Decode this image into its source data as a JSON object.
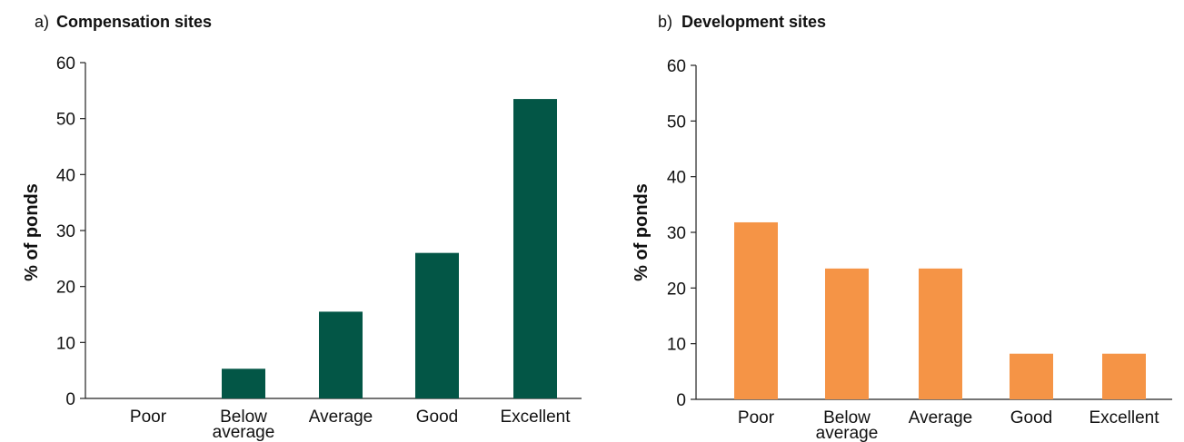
{
  "chart_data": [
    {
      "type": "bar",
      "title_prefix": "a)",
      "title": "Compensation sites",
      "xlabel": "",
      "ylabel": "% of ponds",
      "ylim": [
        0,
        60
      ],
      "yticks": [
        0,
        10,
        20,
        30,
        40,
        50,
        60
      ],
      "categories": [
        "Poor",
        "Below average",
        "Average",
        "Good",
        "Excellent"
      ],
      "category_lines": [
        [
          "Poor"
        ],
        [
          "Below",
          "average"
        ],
        [
          "Average"
        ],
        [
          "Good"
        ],
        [
          "Excellent"
        ]
      ],
      "values": [
        0,
        5.3,
        15.5,
        26,
        53.5
      ],
      "color": "#035646",
      "grid": false
    },
    {
      "type": "bar",
      "title_prefix": "b)",
      "title": "Development sites",
      "xlabel": "",
      "ylabel": "% of ponds",
      "ylim": [
        0,
        60
      ],
      "yticks": [
        0,
        10,
        20,
        30,
        40,
        50,
        60
      ],
      "categories": [
        "Poor",
        "Below average",
        "Average",
        "Good",
        "Excellent"
      ],
      "category_lines": [
        [
          "Poor"
        ],
        [
          "Below",
          "average"
        ],
        [
          "Average"
        ],
        [
          "Good"
        ],
        [
          "Excellent"
        ]
      ],
      "values": [
        31.8,
        23.5,
        23.5,
        8.2,
        8.2
      ],
      "color": "#f59446",
      "grid": false
    }
  ]
}
